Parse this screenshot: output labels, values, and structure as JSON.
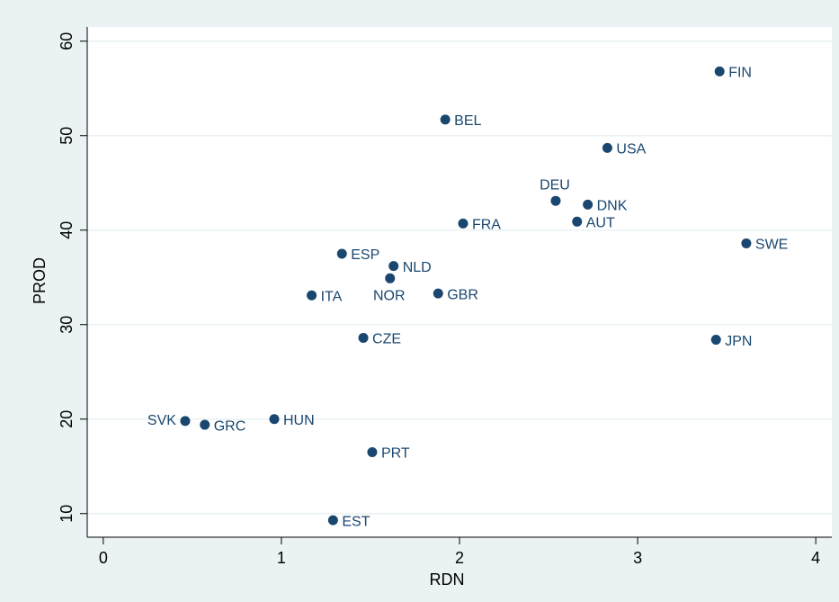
{
  "chart_data": {
    "type": "scatter",
    "x_label": "RDN",
    "y_label": "PROD",
    "labels": [
      "FIN",
      "BEL",
      "USA",
      "DEU",
      "DNK",
      "AUT",
      "FRA",
      "SWE",
      "ESP",
      "NLD",
      "NOR",
      "ITA",
      "GBR",
      "CZE",
      "JPN",
      "SVK",
      "GRC",
      "HUN",
      "PRT",
      "EST"
    ],
    "x": [
      3.46,
      1.92,
      2.83,
      2.54,
      2.72,
      2.66,
      2.02,
      3.61,
      1.34,
      1.63,
      1.61,
      1.17,
      1.88,
      1.46,
      3.44,
      0.46,
      0.57,
      0.96,
      1.51,
      1.29
    ],
    "values": [
      56.8,
      51.7,
      48.7,
      43.1,
      42.7,
      40.9,
      40.7,
      38.6,
      37.5,
      36.2,
      34.9,
      33.1,
      33.3,
      28.6,
      28.4,
      19.8,
      19.4,
      20.0,
      16.5,
      9.3
    ],
    "color": "#1a476f",
    "xlim": [
      -0.09,
      4.09
    ],
    "xticks": [
      0,
      1,
      2,
      3,
      4
    ],
    "ylim": [
      7.5,
      61.5
    ],
    "yticks": [
      10,
      20,
      30,
      40,
      50,
      60
    ],
    "grid": true
  }
}
